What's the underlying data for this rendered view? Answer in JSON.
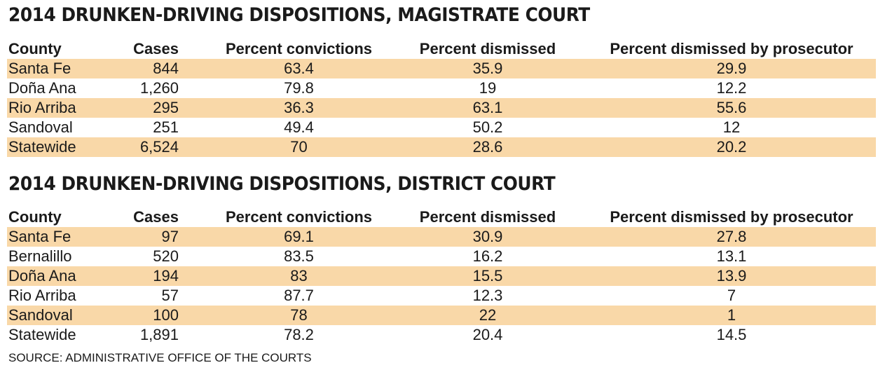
{
  "tables": [
    {
      "title": "2014 DRUNKEN-DRIVING DISPOSITIONS, MAGISTRATE COURT",
      "columns": [
        "County",
        "Cases",
        "Percent convictions",
        "Percent dismissed",
        "Percent dismissed by prosecutor"
      ],
      "rows": [
        [
          "Santa Fe",
          "844",
          "63.4",
          "35.9",
          "29.9"
        ],
        [
          "Doña Ana",
          "1,260",
          "79.8",
          "19",
          "12.2"
        ],
        [
          "Rio Arriba",
          "295",
          "36.3",
          "63.1",
          "55.6"
        ],
        [
          "Sandoval",
          "251",
          "49.4",
          "50.2",
          "12"
        ],
        [
          "Statewide",
          "6,524",
          "70",
          "28.6",
          "20.2"
        ]
      ]
    },
    {
      "title": "2014 DRUNKEN-DRIVING DISPOSITIONS, DISTRICT COURT",
      "columns": [
        "County",
        "Cases",
        "Percent convictions",
        "Percent dismissed",
        "Percent dismissed by prosecutor"
      ],
      "rows": [
        [
          "Santa Fe",
          "97",
          "69.1",
          "30.9",
          "27.8"
        ],
        [
          "Bernalillo",
          "520",
          "83.5",
          "16.2",
          "13.1"
        ],
        [
          "Doña Ana",
          "194",
          "83",
          "15.5",
          "13.9"
        ],
        [
          "Rio Arriba",
          "57",
          "87.7",
          "12.3",
          "7"
        ],
        [
          "Sandoval",
          "100",
          "78",
          "22",
          "1"
        ],
        [
          "Statewide",
          "1,891",
          "78.2",
          "20.4",
          "14.5"
        ]
      ]
    }
  ],
  "source": "SOURCE: ADMINISTRATIVE OFFICE OF THE COURTS",
  "colors": {
    "row_highlight": "#f9d8a8",
    "text": "#1a1a1a",
    "background": "#ffffff"
  }
}
